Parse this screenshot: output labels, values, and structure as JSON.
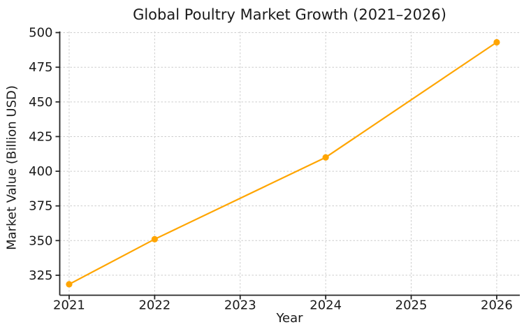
{
  "chart_data": {
    "type": "line",
    "title": "Global Poultry Market Growth (2021–2026)",
    "xlabel": "Year",
    "ylabel": "Market Value (Billion USD)",
    "x": [
      2021,
      2022,
      2024,
      2026
    ],
    "values": [
      318.5,
      351,
      410,
      493
    ],
    "xticks": [
      2021,
      2022,
      2023,
      2024,
      2025,
      2026
    ],
    "yticks": [
      325,
      350,
      375,
      400,
      425,
      450,
      475,
      500
    ],
    "xlim": [
      2020.89,
      2026.27
    ],
    "ylim": [
      310.6,
      500.8
    ],
    "grid": true,
    "grid_style": "dashed",
    "legend": null,
    "colors": {
      "line": "#FFA500",
      "marker": "#FFA500",
      "grid": "#cccccc",
      "axis": "#262626",
      "text": "#1a1a1a"
    }
  }
}
